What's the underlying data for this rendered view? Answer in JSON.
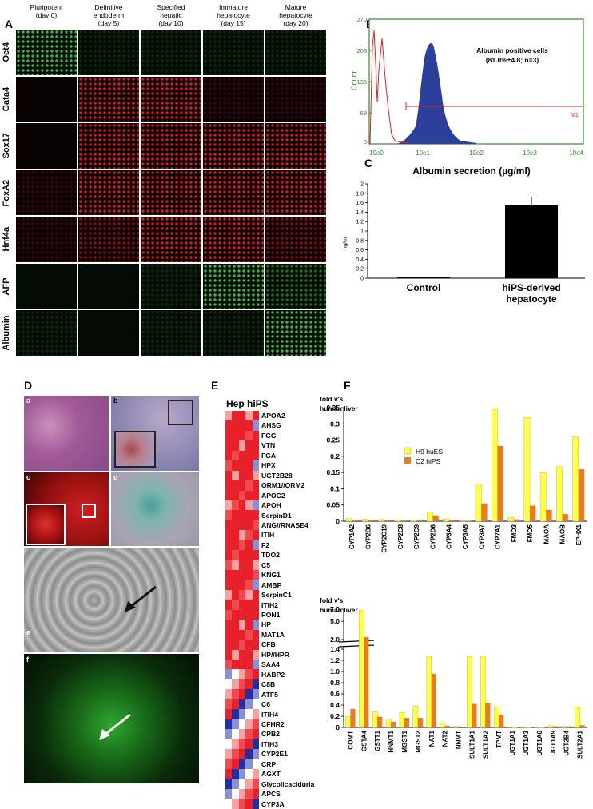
{
  "panelA": {
    "label": "A",
    "columns": [
      {
        "line1": "Pluripotent",
        "line2": "(day 0)"
      },
      {
        "line1": "Definitive",
        "line2": "endoderm",
        "line3": "(day 5)"
      },
      {
        "line1": "Specified",
        "line2": "hepatic",
        "line3": "(day 10)"
      },
      {
        "line1": "Immature",
        "line2": "hepatocyte",
        "line3": "(day 15)"
      },
      {
        "line1": "Mature",
        "line2": "hepatocyte",
        "line3": "(day 20)"
      }
    ],
    "rows": [
      "Oct4",
      "Gata4",
      "Sox17",
      "FoxA2",
      "Hnf4a",
      "AFP",
      "Albumin"
    ],
    "intensity": [
      [
        3,
        1,
        1,
        1,
        1
      ],
      [
        0,
        3,
        3,
        1,
        1
      ],
      [
        0,
        3,
        3,
        3,
        3
      ],
      [
        1,
        3,
        3,
        3,
        3
      ],
      [
        1,
        2,
        3,
        3,
        2
      ],
      [
        0,
        0,
        1,
        3,
        2
      ],
      [
        1,
        0,
        1,
        1,
        3
      ]
    ],
    "channel": [
      "green",
      "red",
      "red",
      "red",
      "red",
      "green",
      "green"
    ]
  },
  "panelB": {
    "label": "B",
    "annotation_line1": "Albumin positive cells",
    "annotation_line2": "(81.0%±4.8; n=3)",
    "marker": "M1",
    "ylabel": "Count",
    "yticks": [
      "0",
      "68",
      "135",
      "203",
      "270"
    ],
    "xticks": [
      "10e0",
      "10e1",
      "10e2",
      "10e3",
      "10e4"
    ]
  },
  "panelC": {
    "label": "C",
    "chart_data": {
      "type": "bar",
      "title": "Albumin secretion (µg/ml)",
      "ylabel": "ng/ml",
      "categories": [
        "Control",
        "hiPS-derived hepatocyte"
      ],
      "values": [
        0.02,
        1.55
      ],
      "errors": [
        0,
        0.17
      ],
      "ylim": [
        0,
        2
      ],
      "yticks": [
        "0",
        "0.2",
        "0.4",
        "0.6",
        "0.8",
        "1",
        "1.2",
        "1.4",
        "1.6",
        "1.8",
        "2"
      ],
      "category_line1": [
        "Control",
        "hiPS-derived"
      ],
      "category_line2": [
        "",
        "hepatocyte"
      ]
    }
  },
  "panelD": {
    "label": "D",
    "sublabels": [
      "a",
      "b",
      "c",
      "d",
      "e",
      "f"
    ]
  },
  "panelE": {
    "label": "E",
    "header": "Hep hiPS",
    "genes": [
      "APOA2",
      "AHSG",
      "FGG",
      "VTN",
      "FGA",
      "HPX",
      "UGT2B28",
      "ORM1//ORM2",
      "APOC2",
      "APOH",
      "SerpinD1",
      "ANG//RNASE4",
      "ITIH",
      "F2",
      "TDO2",
      "C5",
      "KNG1",
      "AMBP",
      "SerpinC1",
      "ITIH2",
      "PON1",
      "HP",
      "MAT1A",
      "CFB",
      "HP//HPR",
      "SAA4",
      "HABP2",
      "C8B",
      "ATF5",
      "C6",
      "ITIH4",
      "CFHR2",
      "CPB2",
      "ITIH3",
      "CYP2E1",
      "CRP",
      "AGXT",
      "Glycolicaciduria",
      "APCS",
      "CYP3A"
    ]
  },
  "panelF": {
    "label": "F",
    "top": {
      "ylabel_line1": "fold v's",
      "ylabel_line2": "human liver",
      "legend": [
        "H9 huES",
        "C2 hiPS"
      ],
      "yticks": [
        "0",
        "0.05",
        "0.1",
        "0.15",
        "0.2",
        "0.25",
        "0.3",
        "0.35"
      ],
      "chart_data": {
        "type": "bar",
        "ylim": [
          0,
          0.35
        ],
        "categories": [
          "CYP1A2",
          "CYP2B6",
          "CYP2C19",
          "CYP2C8",
          "CYP2C9",
          "CYP2D6",
          "CYP3A4",
          "CYP3A5",
          "CYP3A7",
          "CYP7A1",
          "FMO3",
          "FMO5",
          "MAOA",
          "MAOB",
          "EPHX1"
        ],
        "series": [
          {
            "name": "H9 huES",
            "values": [
              0.008,
              0.006,
              0.005,
              0.004,
              0.004,
              0.028,
              0.007,
              0.002,
              0.115,
              0.345,
              0.012,
              0.32,
              0.15,
              0.168,
              0.26
            ]
          },
          {
            "name": "C2 hiPS",
            "values": [
              0.005,
              0.004,
              0.003,
              0.002,
              0.003,
              0.018,
              0.004,
              0.001,
              0.055,
              0.232,
              0.006,
              0.048,
              0.035,
              0.022,
              0.16
            ]
          }
        ]
      }
    },
    "bottom": {
      "ylabel_line1": "fold v's",
      "ylabel_line2": "human liver",
      "yticks_upper": [
        "2.0",
        "5.0",
        "7.0"
      ],
      "yticks_lower": [
        "0",
        "0.2",
        "0.4",
        "0.6",
        "0.8",
        "1.0",
        "1.2",
        "1.4"
      ],
      "chart_data": {
        "type": "bar",
        "ylim": [
          0,
          1.4
        ],
        "broken_axis_upper": [
          1.4,
          7.0
        ],
        "categories": [
          "COMT",
          "GSTA4",
          "GSTT1",
          "HNMT1",
          "MGST1",
          "MGST2",
          "NAT1",
          "NAT2",
          "NNMT",
          "SULT1A1",
          "SULT1A2",
          "TPMT",
          "UGT1A1",
          "UGT1A3",
          "UGT1A6",
          "UGT1A9",
          "UGT2B4",
          "SULT2A1"
        ],
        "series": [
          {
            "name": "H9 huES",
            "values": [
              0.2,
              6.8,
              0.28,
              0.15,
              0.27,
              0.38,
              1.27,
              0.08,
              0.02,
              1.27,
              1.27,
              0.37,
              0.01,
              0.01,
              0.01,
              0.03,
              0.02,
              0.37
            ]
          },
          {
            "name": "C2 hiPS",
            "values": [
              0.33,
              2.4,
              0.19,
              0.1,
              0.17,
              0.17,
              0.96,
              0.03,
              0.01,
              0.42,
              0.44,
              0.23,
              0.0,
              0.0,
              0.0,
              0.02,
              0.02,
              0.04
            ]
          }
        ]
      }
    }
  },
  "colors": {
    "huES": "#ffff44",
    "hiPS": "#e87c24",
    "flow_fill": "#2c3f9a",
    "flow_red": "#e02020",
    "flow_frame": "#2e8b2e"
  }
}
